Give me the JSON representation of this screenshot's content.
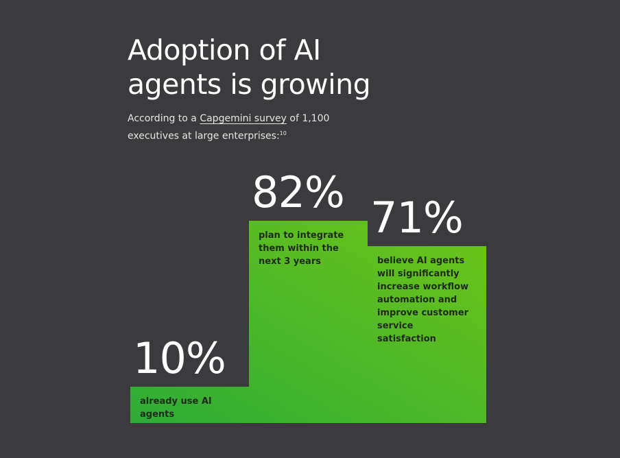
{
  "chart_data": {
    "type": "bar",
    "title": "Adoption of AI agents is growing",
    "subtitle_before": "According to a",
    "subtitle_link": "Capgemini survey",
    "subtitle_after": "of 1,100 executives at large enterprises:",
    "footnote_ref": "10",
    "categories": [
      "already use AI agents",
      "plan to integrate them within the next 3 years",
      "believe AI agents will significantly increase workflow automation and improve customer service satisfaction"
    ],
    "values": [
      10,
      82,
      71
    ],
    "value_labels": [
      "10%",
      "82%",
      "71%"
    ],
    "colors": [
      "#1ea540",
      "#9bd600"
    ]
  }
}
